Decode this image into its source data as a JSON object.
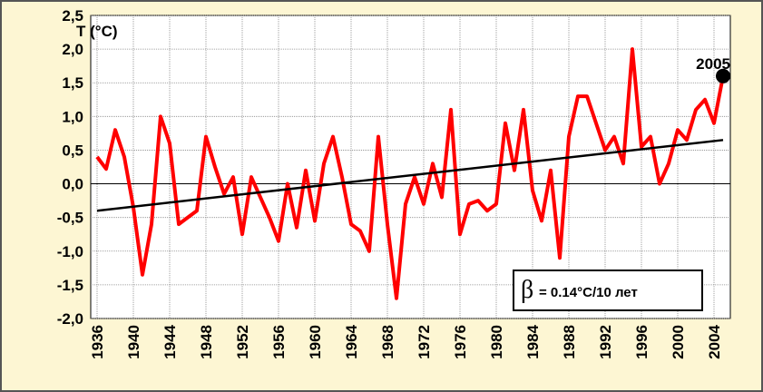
{
  "chart_data": {
    "type": "line",
    "ylabel": "T (°C)",
    "x": [
      1936,
      1937,
      1938,
      1939,
      1940,
      1941,
      1942,
      1943,
      1944,
      1945,
      1946,
      1947,
      1948,
      1949,
      1950,
      1951,
      1952,
      1953,
      1954,
      1955,
      1956,
      1957,
      1958,
      1959,
      1960,
      1961,
      1962,
      1963,
      1964,
      1965,
      1966,
      1967,
      1968,
      1969,
      1970,
      1971,
      1972,
      1973,
      1974,
      1975,
      1976,
      1977,
      1978,
      1979,
      1980,
      1981,
      1982,
      1983,
      1984,
      1985,
      1986,
      1987,
      1988,
      1989,
      1990,
      1991,
      1992,
      1993,
      1994,
      1995,
      1996,
      1997,
      1998,
      1999,
      2000,
      2001,
      2002,
      2003,
      2004,
      2005
    ],
    "series": [
      {
        "color": "#ff0000",
        "values": [
          0.4,
          0.22,
          0.8,
          0.4,
          -0.35,
          -1.35,
          -0.6,
          1.0,
          0.6,
          -0.6,
          -0.5,
          -0.4,
          0.7,
          0.25,
          -0.15,
          0.1,
          -0.75,
          0.1,
          -0.2,
          -0.5,
          -0.85,
          0.0,
          -0.65,
          0.2,
          -0.55,
          0.3,
          0.7,
          0.1,
          -0.6,
          -0.7,
          -1.0,
          0.7,
          -0.6,
          -1.7,
          -0.3,
          0.1,
          -0.3,
          0.3,
          -0.2,
          1.1,
          -0.75,
          -0.3,
          -0.25,
          -0.4,
          -0.3,
          0.9,
          0.2,
          1.1,
          -0.1,
          -0.55,
          0.2,
          -1.1,
          0.7,
          1.3,
          1.3,
          0.9,
          0.5,
          0.7,
          0.3,
          2.0,
          0.55,
          0.7,
          0.0,
          0.3,
          0.8,
          0.65,
          1.1,
          1.25,
          0.9,
          1.6
        ]
      },
      {
        "color": "#000000",
        "x": [
          1936,
          2005
        ],
        "values": [
          -0.4,
          0.65
        ]
      }
    ],
    "highlight": {
      "label": "2005",
      "color": "#000000"
    },
    "annotation": {
      "symbol": "β",
      "text": "= 0.14°C/10 лет"
    },
    "xlim": [
      1935.3,
      2005.8
    ],
    "ylim": [
      -2.0,
      2.5
    ],
    "xticks": [
      1936,
      1940,
      1944,
      1948,
      1952,
      1956,
      1960,
      1964,
      1968,
      1972,
      1976,
      1980,
      1984,
      1988,
      1992,
      1996,
      2000,
      2004
    ],
    "yticks": [
      {
        "value": -2.0,
        "label": "-2,0"
      },
      {
        "value": -1.5,
        "label": "-1,5"
      },
      {
        "value": -1.0,
        "label": "-1,0"
      },
      {
        "value": -0.5,
        "label": "-0,5"
      },
      {
        "value": 0,
        "label": "0,0"
      },
      {
        "value": 0.5,
        "label": "0,5"
      },
      {
        "value": 1.0,
        "label": "1,0"
      },
      {
        "value": 1.5,
        "label": "1,5"
      },
      {
        "value": 2.0,
        "label": "2,0"
      },
      {
        "value": 2.5,
        "label": "2,5"
      }
    ],
    "grid": true
  }
}
